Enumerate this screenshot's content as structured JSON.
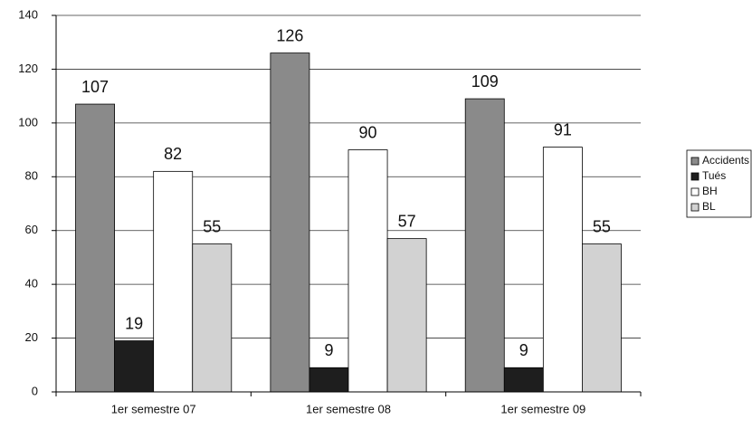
{
  "chart_data": {
    "type": "bar",
    "categories": [
      "1er semestre 07",
      "1er semestre 08",
      "1er semestre 09"
    ],
    "series": [
      {
        "name": "Accidents",
        "color": "#8a8a8a",
        "values": [
          107,
          126,
          109
        ]
      },
      {
        "name": "Tués",
        "color": "#1e1e1e",
        "values": [
          19,
          9,
          9
        ]
      },
      {
        "name": "BH",
        "color": "#ffffff",
        "values": [
          82,
          90,
          91
        ]
      },
      {
        "name": "BL",
        "color": "#d2d2d2",
        "values": [
          55,
          57,
          55
        ]
      }
    ],
    "ylim": [
      0,
      140
    ],
    "yticks": [
      0,
      20,
      40,
      60,
      80,
      100,
      120,
      140
    ],
    "grid": true,
    "legend": "right"
  }
}
